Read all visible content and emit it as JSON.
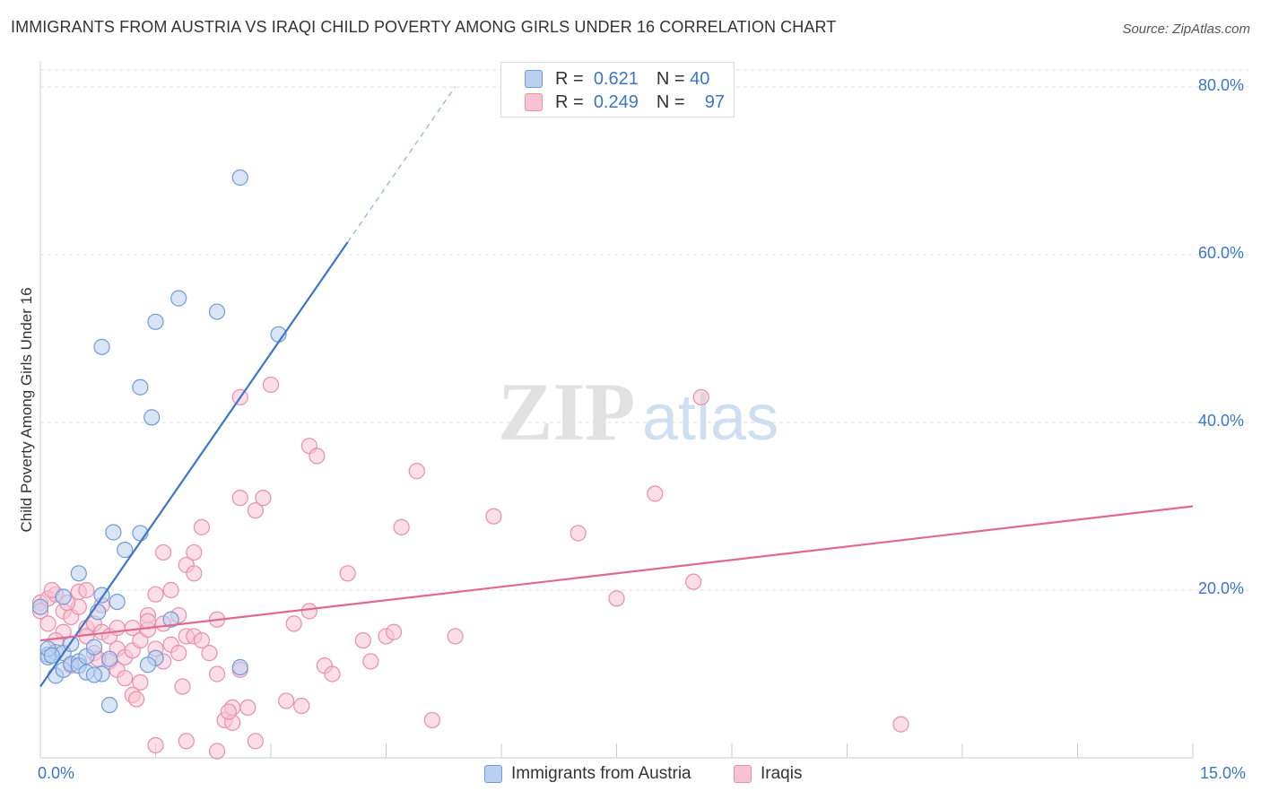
{
  "title": "IMMIGRANTS FROM AUSTRIA VS IRAQI CHILD POVERTY AMONG GIRLS UNDER 16 CORRELATION CHART",
  "source": "Source: ZipAtlas.com",
  "watermark": {
    "zip": "ZIP",
    "atlas": "atlas"
  },
  "colors": {
    "blue": "#3b76c9",
    "blue_fill": "#b9d0f0",
    "pink": "#e0698f",
    "pink_fill": "#f7c3d3",
    "grid": "#dddddd"
  },
  "legend": {
    "r_label": "R =",
    "n_label": "N =",
    "rows": [
      {
        "r": "0.621",
        "n": "40",
        "color": "#b9d0f0",
        "border": "#6f9bd6"
      },
      {
        "r": "0.249",
        "n": "97",
        "color": "#f7c3d3",
        "border": "#e98fab"
      }
    ]
  },
  "bottom_legend": [
    "Immigrants from Austria",
    "Iraqis"
  ],
  "chart_data": {
    "type": "scatter",
    "title": "IMMIGRANTS FROM AUSTRIA VS IRAQI CHILD POVERTY AMONG GIRLS UNDER 16 CORRELATION CHART",
    "xlabel": "",
    "ylabel": "Child Poverty Among Girls Under 16",
    "xlim": [
      0,
      15
    ],
    "ylim": [
      0,
      80
    ],
    "x_tick_labels": [
      "0.0%",
      "15.0%"
    ],
    "y_ticks": [
      20,
      40,
      60,
      80
    ],
    "y_tick_labels": [
      "20.0%",
      "40.0%",
      "60.0%",
      "80.0%"
    ],
    "grid": true,
    "legend_position": "top-center",
    "series": [
      {
        "name": "Immigrants from Austria",
        "r": 0.621,
        "n": 40,
        "trend": {
          "x0": 0,
          "y0": 8.5,
          "x1": 4.0,
          "y1": 61.5,
          "dash_to_x": 5.4
        },
        "points": [
          [
            0.1,
            12.3
          ],
          [
            0.2,
            12.6
          ],
          [
            0.1,
            12.0
          ],
          [
            0.3,
            12.5
          ],
          [
            0.2,
            9.8
          ],
          [
            0.3,
            10.5
          ],
          [
            0.4,
            11.2
          ],
          [
            0.5,
            11.5
          ],
          [
            0.4,
            13.6
          ],
          [
            0.5,
            11.0
          ],
          [
            0.6,
            10.2
          ],
          [
            0.6,
            12.1
          ],
          [
            0.7,
            13.2
          ],
          [
            0.8,
            10.0
          ],
          [
            0.9,
            11.8
          ],
          [
            0.7,
            9.9
          ],
          [
            0.3,
            19.2
          ],
          [
            0.5,
            22.0
          ],
          [
            0.8,
            19.4
          ],
          [
            1.0,
            18.6
          ],
          [
            0.9,
            6.3
          ],
          [
            1.1,
            24.8
          ],
          [
            0.95,
            26.9
          ],
          [
            1.3,
            26.8
          ],
          [
            1.5,
            11.9
          ],
          [
            1.4,
            11.1
          ],
          [
            1.7,
            16.5
          ],
          [
            2.6,
            10.8
          ],
          [
            0.8,
            49.0
          ],
          [
            1.3,
            44.2
          ],
          [
            1.45,
            40.6
          ],
          [
            1.5,
            52.0
          ],
          [
            1.8,
            54.8
          ],
          [
            2.3,
            53.2
          ],
          [
            3.1,
            50.5
          ],
          [
            2.6,
            69.2
          ],
          [
            0.1,
            13.0
          ],
          [
            0.0,
            18.0
          ],
          [
            0.15,
            12.2
          ],
          [
            0.75,
            17.4
          ]
        ]
      },
      {
        "name": "Iraqis",
        "r": 0.249,
        "n": 97,
        "trend": {
          "x0": 0,
          "y0": 14.0,
          "x1": 15,
          "y1": 30.0
        },
        "points": [
          [
            0.0,
            18.5
          ],
          [
            0.0,
            17.5
          ],
          [
            0.1,
            19.0
          ],
          [
            0.1,
            16.0
          ],
          [
            0.2,
            19.5
          ],
          [
            0.3,
            17.5
          ],
          [
            0.3,
            15.0
          ],
          [
            0.4,
            16.8
          ],
          [
            0.5,
            18.0
          ],
          [
            0.5,
            19.8
          ],
          [
            0.6,
            15.5
          ],
          [
            0.6,
            14.5
          ],
          [
            0.7,
            16.0
          ],
          [
            0.7,
            12.5
          ],
          [
            0.8,
            18.2
          ],
          [
            0.8,
            15.0
          ],
          [
            0.9,
            14.5
          ],
          [
            0.9,
            11.5
          ],
          [
            1.0,
            10.5
          ],
          [
            1.0,
            13.0
          ],
          [
            1.1,
            9.5
          ],
          [
            1.1,
            12.0
          ],
          [
            1.2,
            15.5
          ],
          [
            1.2,
            12.8
          ],
          [
            1.3,
            14.0
          ],
          [
            1.3,
            9.0
          ],
          [
            1.4,
            15.3
          ],
          [
            1.4,
            17.0
          ],
          [
            1.5,
            13.0
          ],
          [
            1.5,
            19.5
          ],
          [
            1.6,
            11.5
          ],
          [
            1.6,
            16.0
          ],
          [
            1.7,
            13.5
          ],
          [
            1.7,
            20.0
          ],
          [
            1.8,
            12.5
          ],
          [
            1.8,
            17.0
          ],
          [
            1.9,
            14.5
          ],
          [
            1.9,
            23.0
          ],
          [
            2.0,
            22.0
          ],
          [
            2.0,
            24.5
          ],
          [
            2.1,
            27.5
          ],
          [
            2.2,
            12.5
          ],
          [
            2.3,
            10.0
          ],
          [
            2.3,
            16.5
          ],
          [
            2.4,
            4.5
          ],
          [
            2.5,
            6.0
          ],
          [
            2.5,
            4.2
          ],
          [
            2.6,
            10.5
          ],
          [
            2.6,
            31.0
          ],
          [
            2.7,
            6.0
          ],
          [
            2.8,
            29.5
          ],
          [
            2.9,
            31.0
          ],
          [
            3.0,
            44.5
          ],
          [
            3.2,
            6.8
          ],
          [
            3.4,
            6.2
          ],
          [
            3.5,
            17.5
          ],
          [
            3.5,
            37.2
          ],
          [
            3.6,
            36.0
          ],
          [
            3.7,
            11.0
          ],
          [
            3.8,
            10.0
          ],
          [
            4.0,
            22.0
          ],
          [
            4.2,
            14.0
          ],
          [
            4.3,
            11.5
          ],
          [
            4.5,
            14.5
          ],
          [
            4.6,
            15.0
          ],
          [
            4.7,
            27.5
          ],
          [
            4.9,
            34.2
          ],
          [
            5.1,
            4.5
          ],
          [
            5.4,
            14.5
          ],
          [
            5.9,
            28.8
          ],
          [
            7.0,
            26.8
          ],
          [
            7.5,
            19.0
          ],
          [
            8.0,
            31.5
          ],
          [
            8.5,
            21.0
          ],
          [
            8.6,
            43.0
          ],
          [
            11.2,
            4.0
          ],
          [
            2.6,
            43.0
          ],
          [
            1.5,
            1.5
          ],
          [
            1.9,
            2.0
          ],
          [
            2.3,
            0.8
          ],
          [
            1.2,
            7.5
          ],
          [
            0.6,
            20.0
          ],
          [
            1.0,
            15.5
          ],
          [
            2.0,
            14.5
          ],
          [
            0.2,
            14.0
          ],
          [
            0.4,
            11.0
          ],
          [
            1.6,
            24.5
          ],
          [
            2.8,
            2.0
          ],
          [
            1.4,
            16.3
          ],
          [
            0.15,
            20.0
          ],
          [
            2.1,
            14.0
          ],
          [
            0.75,
            11.8
          ],
          [
            1.25,
            7.0
          ],
          [
            1.85,
            8.5
          ],
          [
            2.45,
            5.5
          ],
          [
            3.3,
            16.0
          ],
          [
            0.35,
            18.5
          ]
        ]
      }
    ]
  }
}
